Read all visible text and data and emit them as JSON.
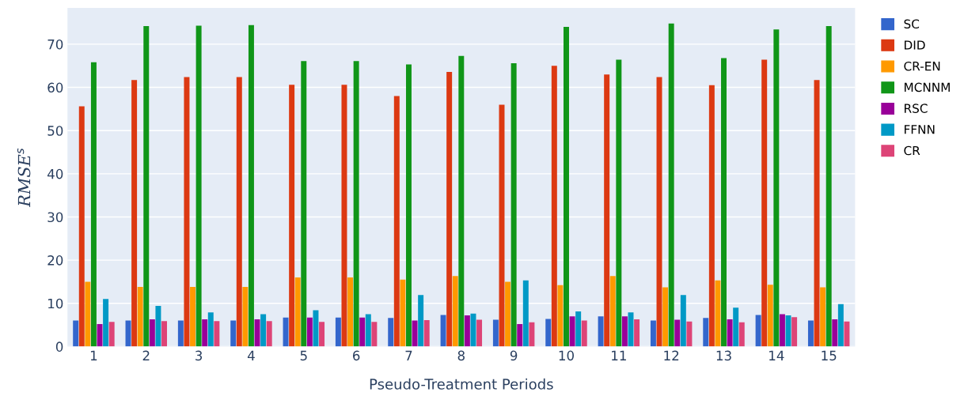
{
  "chart_data": {
    "type": "bar",
    "xlabel": "Pseudo-Treatment Periods",
    "ylabel": "RMSE$^{s}$",
    "categories": [
      "1",
      "2",
      "3",
      "4",
      "5",
      "6",
      "7",
      "8",
      "9",
      "10",
      "11",
      "12",
      "13",
      "14",
      "15"
    ],
    "series": [
      {
        "name": "SC",
        "color": "#3366cc",
        "values": [
          6,
          6,
          6,
          6,
          6.7,
          6.7,
          6.6,
          7.3,
          6.2,
          6.4,
          7,
          6,
          6.6,
          7.3,
          6
        ]
      },
      {
        "name": "DID",
        "color": "#dc3912",
        "values": [
          55.6,
          61.7,
          62.4,
          62.4,
          60.6,
          60.6,
          58,
          63.6,
          56,
          65,
          63,
          62.4,
          60.5,
          66.4,
          61.7
        ]
      },
      {
        "name": "CR-EN",
        "color": "#ff9900",
        "values": [
          15,
          13.8,
          13.8,
          13.8,
          16,
          16,
          15.5,
          16.3,
          15,
          14.2,
          16.3,
          13.7,
          15.3,
          14.3,
          13.7
        ]
      },
      {
        "name": "MCNNM",
        "color": "#109618",
        "values": [
          65.8,
          74.2,
          74.3,
          74.4,
          66.1,
          66.1,
          65.3,
          67.3,
          65.6,
          74,
          66.4,
          74.8,
          66.8,
          73.4,
          74.2
        ]
      },
      {
        "name": "RSC",
        "color": "#990099",
        "values": [
          5.2,
          6.3,
          6.3,
          6.3,
          6.7,
          6.7,
          6,
          7.2,
          5.2,
          7,
          7,
          6.2,
          6.3,
          7.5,
          6.3
        ]
      },
      {
        "name": "FFNN",
        "color": "#0099c6",
        "values": [
          11,
          9.4,
          7.9,
          7.5,
          8.4,
          7.5,
          11.9,
          7.6,
          15.3,
          8.1,
          7.9,
          11.9,
          9,
          7.2,
          9.8
        ]
      },
      {
        "name": "CR",
        "color": "#dd4477",
        "values": [
          5.7,
          5.9,
          5.9,
          5.9,
          5.7,
          5.7,
          6.1,
          6.2,
          5.6,
          6,
          6.3,
          5.8,
          5.6,
          6.8,
          5.8
        ]
      }
    ],
    "ylim": [
      0,
      78.4
    ],
    "yticks": [
      0,
      10,
      20,
      30,
      40,
      50,
      60,
      70
    ],
    "grid": true,
    "legend": "top right"
  }
}
